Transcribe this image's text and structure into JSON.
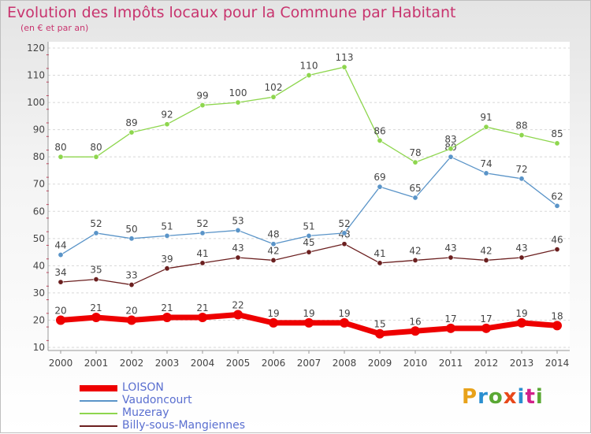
{
  "title": "Evolution des Impôts locaux pour la Commune par Habitant",
  "subtitle": "(en € et par an)",
  "logo": {
    "text": "Proxiti",
    "colors": [
      "#e8a21a",
      "#2a8fd0",
      "#5aa834",
      "#e8481a",
      "#2a8fd0",
      "#d2208a",
      "#5aa834"
    ]
  },
  "chart_data": {
    "type": "line",
    "x": [
      "2000",
      "2001",
      "2002",
      "2003",
      "2004",
      "2005",
      "2006",
      "2007",
      "2008",
      "2009",
      "2010",
      "2011",
      "2012",
      "2013",
      "2014"
    ],
    "ylim": [
      10,
      120
    ],
    "yticks": [
      10,
      20,
      30,
      40,
      50,
      60,
      70,
      80,
      90,
      100,
      110,
      120
    ],
    "ytick_labels": [
      "10",
      "20",
      "30",
      "40",
      "50",
      "60",
      "70",
      "80",
      "90",
      "100",
      "110",
      "120"
    ],
    "grid": "horizontal dashed",
    "legend_position": "bottom-left",
    "series": [
      {
        "name": "Billy-sous-Mangiennes",
        "color": "#6b1f1f",
        "values": [
          34,
          35,
          33,
          39,
          41,
          43,
          42,
          45,
          48,
          41,
          42,
          43,
          42,
          43,
          46
        ]
      },
      {
        "name": "Vaudoncourt",
        "color": "#5a94c8",
        "values": [
          44,
          52,
          50,
          51,
          52,
          53,
          48,
          51,
          52,
          69,
          65,
          80,
          74,
          72,
          62
        ]
      },
      {
        "name": "Muzeray",
        "color": "#8ed64e",
        "values": [
          80,
          80,
          89,
          92,
          99,
          100,
          102,
          110,
          113,
          86,
          78,
          83,
          91,
          88,
          85
        ]
      },
      {
        "name": "LOISON",
        "color": "#ee0000",
        "values": [
          20,
          21,
          20,
          21,
          21,
          22,
          19,
          19,
          19,
          15,
          16,
          17,
          17,
          19,
          18
        ]
      }
    ],
    "legend": [
      "LOISON",
      "Vaudoncourt",
      "Muzeray",
      "Billy-sous-Mangiennes"
    ]
  }
}
